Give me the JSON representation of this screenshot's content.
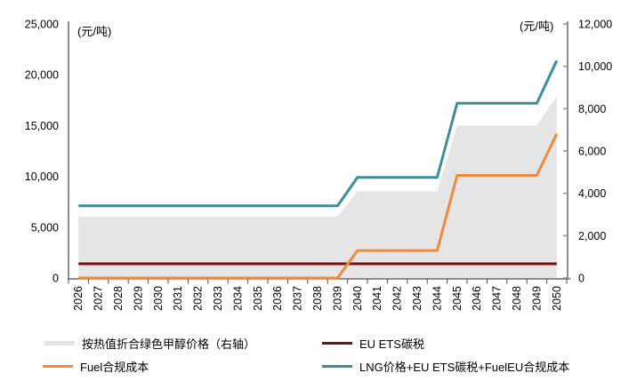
{
  "chart_data": {
    "type": "line+area",
    "title": "",
    "left_unit": "(元/吨)",
    "right_unit": "(元/吨)",
    "left_ylim": [
      0,
      25000
    ],
    "right_ylim": [
      0,
      12000
    ],
    "left_axis_ticks": [
      0,
      5000,
      10000,
      15000,
      20000,
      25000
    ],
    "right_axis_ticks": [
      0,
      2000,
      4000,
      6000,
      8000,
      10000,
      12000
    ],
    "legend_position": "bottom",
    "grid": false,
    "x": [
      2026,
      2027,
      2028,
      2029,
      2030,
      2031,
      2032,
      2033,
      2034,
      2035,
      2036,
      2037,
      2038,
      2039,
      2040,
      2041,
      2042,
      2043,
      2044,
      2045,
      2046,
      2047,
      2048,
      2049,
      2050
    ],
    "series": [
      {
        "name": "按热值折合绿色甲醇价格（右轴）",
        "key": "methanol-price-area",
        "type": "area",
        "axis": "right",
        "color": "#E5E5E5",
        "values": [
          2900,
          2900,
          2900,
          2900,
          2900,
          2900,
          2900,
          2900,
          2900,
          2900,
          2900,
          2900,
          2900,
          2900,
          4100,
          4100,
          4100,
          4100,
          4100,
          7200,
          7200,
          7200,
          7200,
          7200,
          8600
        ]
      },
      {
        "name": "EU ETS碳税",
        "key": "eu-ets-tax-line",
        "type": "line",
        "axis": "left",
        "color": "#73100B",
        "values": [
          1400,
          1400,
          1400,
          1400,
          1400,
          1400,
          1400,
          1400,
          1400,
          1400,
          1400,
          1400,
          1400,
          1400,
          1400,
          1400,
          1400,
          1400,
          1400,
          1400,
          1400,
          1400,
          1400,
          1400,
          1400
        ]
      },
      {
        "name": "Fuel合规成本",
        "key": "fuel-compliance-line",
        "type": "line",
        "axis": "left",
        "color": "#EE8A3C",
        "values": [
          0,
          0,
          0,
          0,
          0,
          0,
          0,
          0,
          0,
          0,
          0,
          0,
          0,
          0,
          2700,
          2700,
          2700,
          2700,
          2700,
          10100,
          10100,
          10100,
          10100,
          10100,
          14200
        ]
      },
      {
        "name": "LNG价格+EU ETS碳税+FuelEU合规成本",
        "key": "lng-total-cost-line",
        "type": "line",
        "axis": "left",
        "color": "#3C8D9E",
        "values": [
          7100,
          7100,
          7100,
          7100,
          7100,
          7100,
          7100,
          7100,
          7100,
          7100,
          7100,
          7100,
          7100,
          7100,
          9900,
          9900,
          9900,
          9900,
          9900,
          17200,
          17200,
          17200,
          17200,
          17200,
          21400
        ]
      }
    ]
  }
}
